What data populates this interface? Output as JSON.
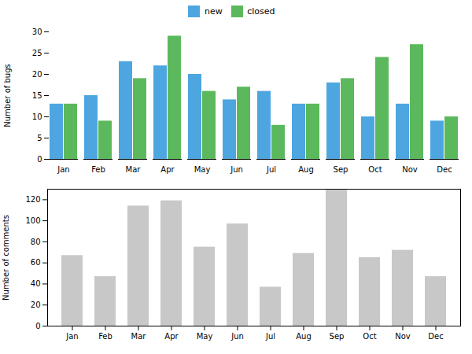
{
  "chart_data": [
    {
      "type": "bar",
      "categories": [
        "Jan",
        "Feb",
        "Mar",
        "Apr",
        "May",
        "Jun",
        "Jul",
        "Aug",
        "Sep",
        "Oct",
        "Nov",
        "Dec"
      ],
      "series": [
        {
          "name": "new",
          "color": "#4da6e0",
          "values": [
            13,
            15,
            23,
            22,
            20,
            14,
            16,
            13,
            18,
            10,
            13,
            9
          ]
        },
        {
          "name": "closed",
          "color": "#5cb85c",
          "values": [
            13,
            9,
            19,
            29,
            16,
            17,
            8,
            13,
            19,
            24,
            27,
            10
          ]
        }
      ],
      "y_label": "Number of bugs",
      "ylim": [
        0,
        30
      ],
      "yticks": [
        0,
        5,
        10,
        15,
        20,
        25,
        30
      ],
      "grid": false,
      "legend": "top"
    },
    {
      "type": "bar",
      "categories": [
        "Jan",
        "Feb",
        "Mar",
        "Apr",
        "May",
        "Jun",
        "Jul",
        "Aug",
        "Sep",
        "Oct",
        "Nov",
        "Dec"
      ],
      "values": [
        67,
        47,
        114,
        119,
        75,
        97,
        37,
        69,
        130,
        65,
        72,
        47
      ],
      "color": "#c8c8c8",
      "y_label": "Number of comments",
      "ylim": [
        0,
        130
      ],
      "yticks": [
        0,
        20,
        40,
        60,
        80,
        100,
        120
      ],
      "grid": false
    }
  ]
}
